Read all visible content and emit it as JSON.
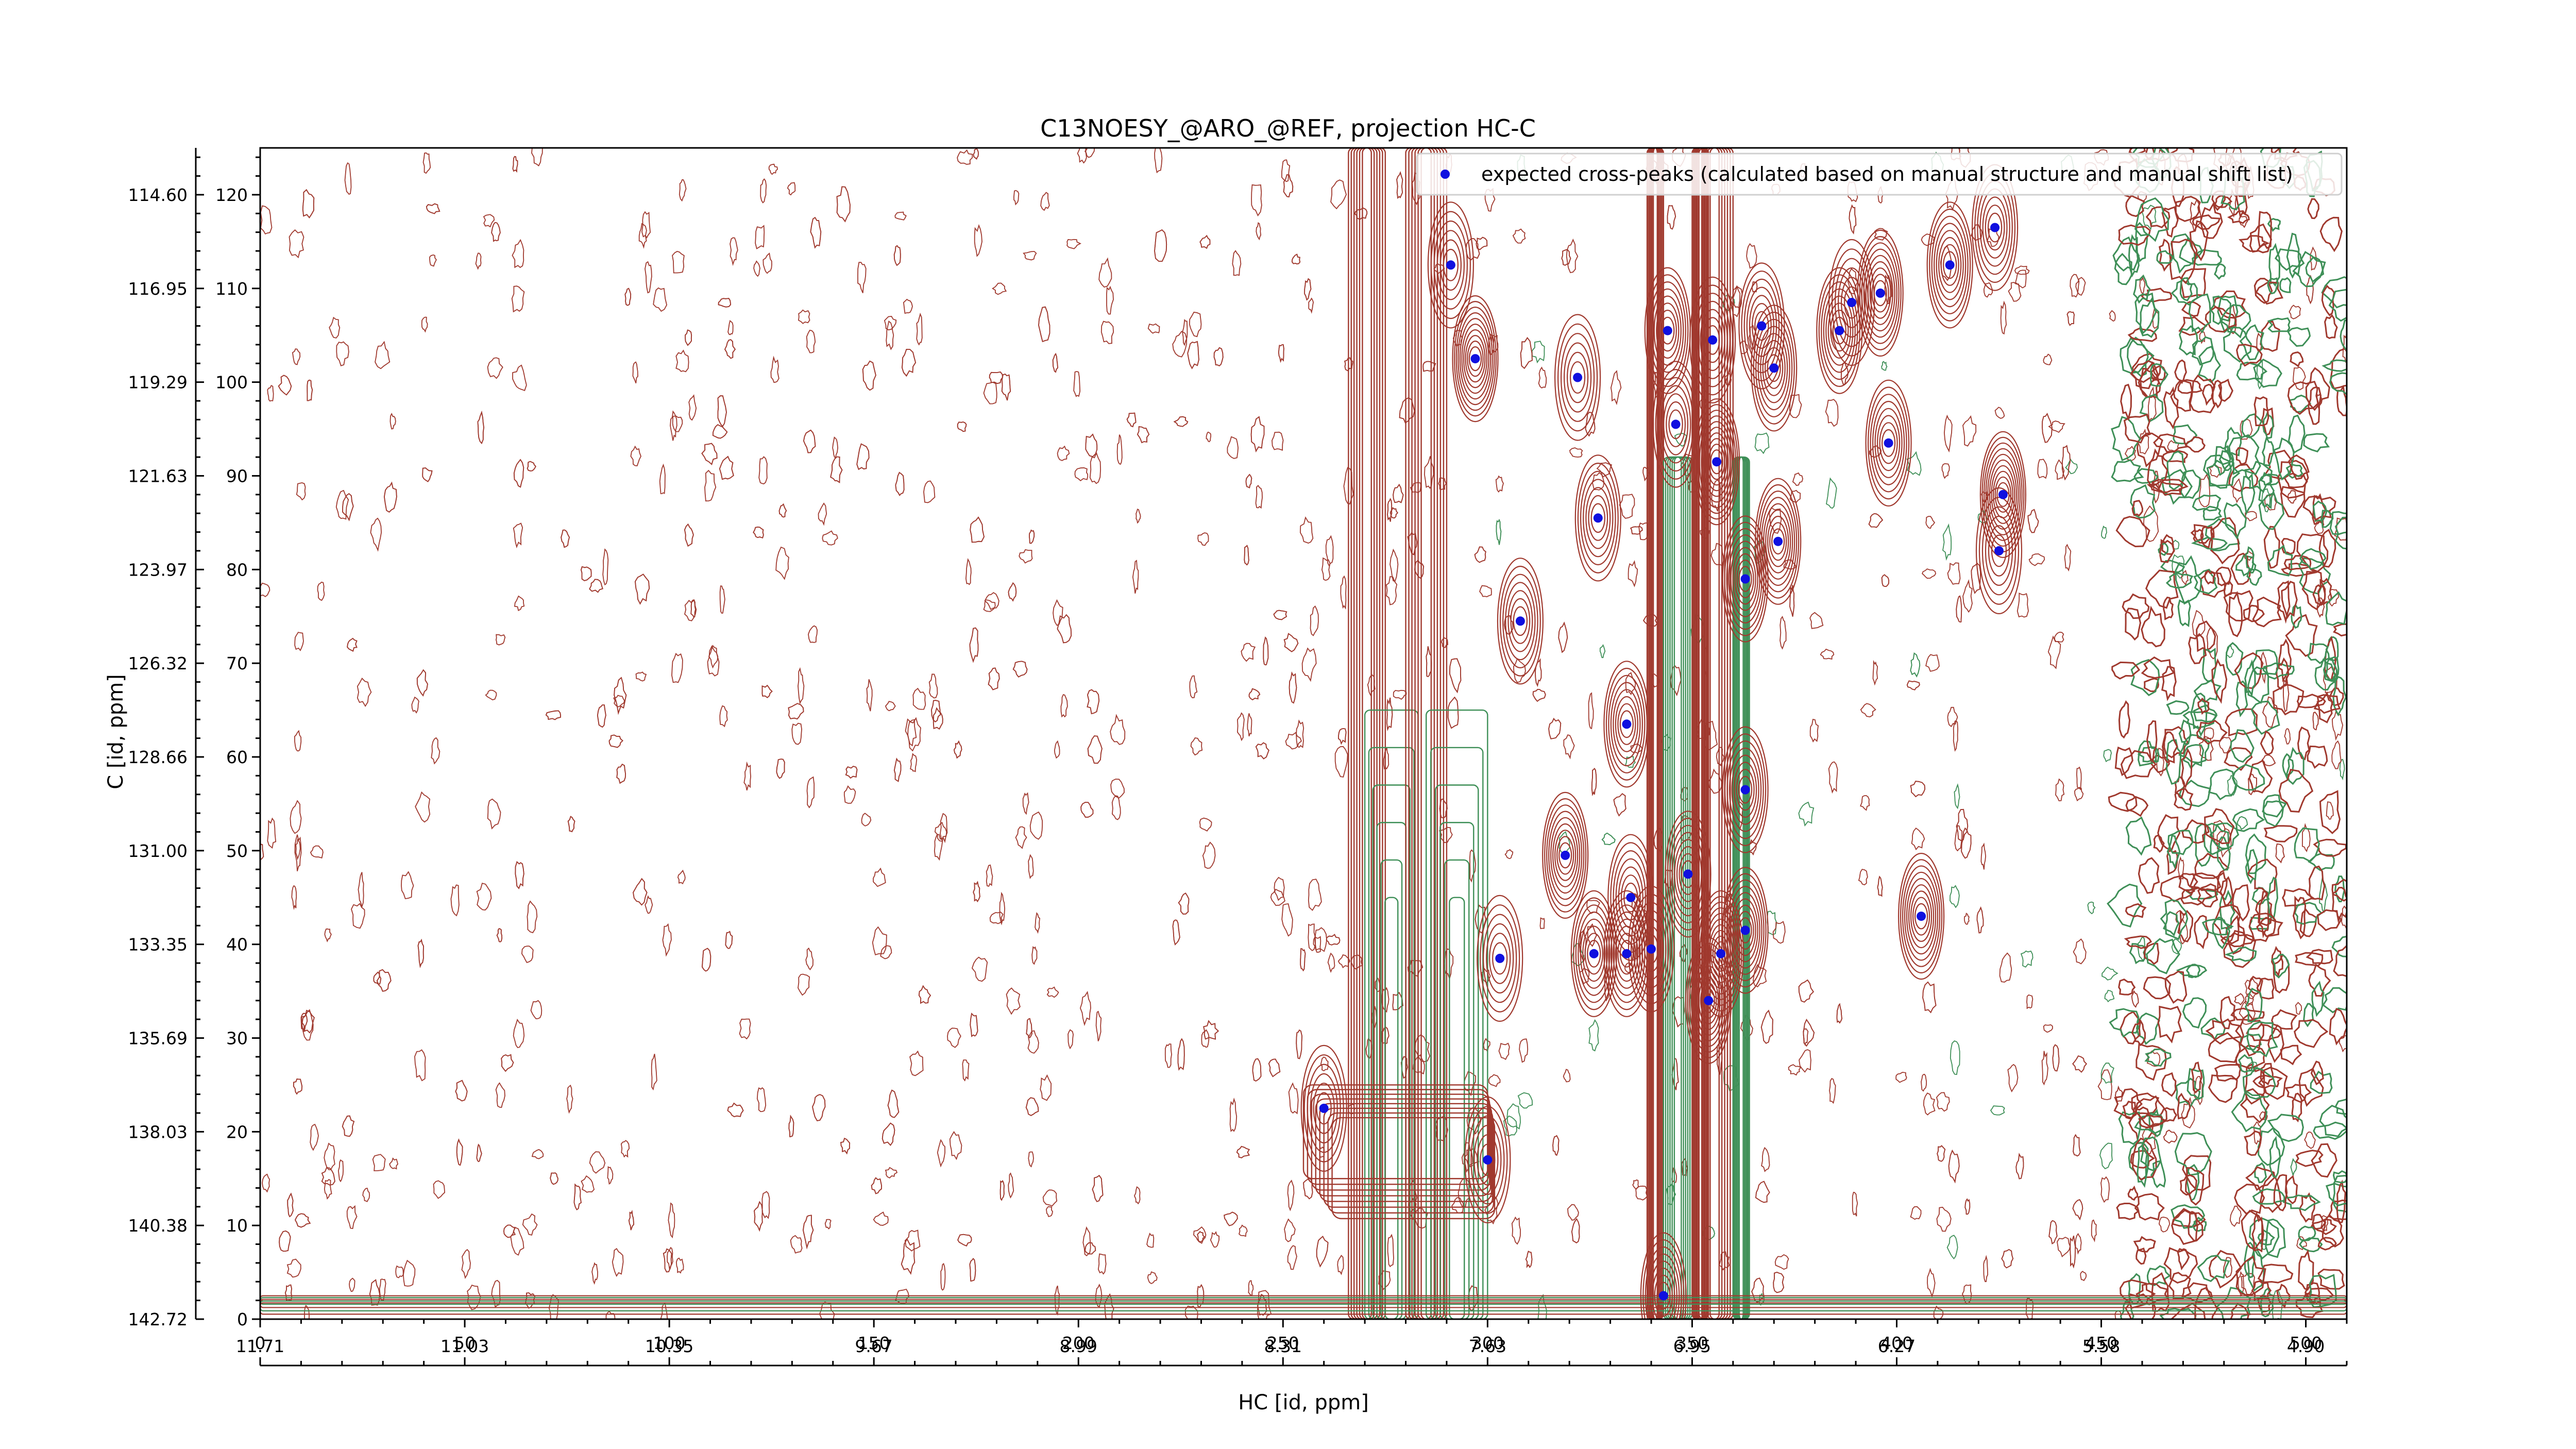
{
  "chart_data": {
    "type": "scatter",
    "title": "C13NOESY_@ARO_@REF, projection HC-C",
    "xlabel": "HC [id, ppm]",
    "ylabel": "C [id, ppm]",
    "xlim": [
      0,
      510
    ],
    "ylim": [
      0,
      125
    ],
    "x_index_ticks": [
      0,
      50,
      100,
      150,
      200,
      250,
      300,
      350,
      400,
      450,
      500
    ],
    "y_index_ticks": [
      0,
      10,
      20,
      30,
      40,
      50,
      60,
      70,
      80,
      90,
      100,
      110,
      120
    ],
    "x_ppm_ticks": [
      "11.71",
      "11.03",
      "10.35",
      "9.67",
      "8.99",
      "8.31",
      "7.63",
      "6.95",
      "6.27",
      "5.58",
      "4.90"
    ],
    "y_ppm_ticks": [
      "142.72",
      "140.38",
      "138.03",
      "135.69",
      "133.35",
      "131.00",
      "128.66",
      "126.32",
      "123.97",
      "121.63",
      "119.29",
      "116.95",
      "114.60"
    ],
    "legend": {
      "label": "expected cross-peaks (calculated based on manual structure and manual shift list)",
      "placement": "top-right"
    },
    "contour_colors": {
      "positive": "#a0392e",
      "negative": "#3e8f57"
    },
    "marker_color": "#1010e0",
    "series": [
      {
        "name": "expected cross-peaks (calculated based on manual structure and manual shift list)",
        "points": [
          {
            "x": 291,
            "y": 112.5
          },
          {
            "x": 297,
            "y": 102.5
          },
          {
            "x": 308,
            "y": 74.5
          },
          {
            "x": 322,
            "y": 100.5
          },
          {
            "x": 327,
            "y": 85.5
          },
          {
            "x": 334,
            "y": 63.5
          },
          {
            "x": 344,
            "y": 105.5
          },
          {
            "x": 346,
            "y": 95.5
          },
          {
            "x": 355,
            "y": 104.5
          },
          {
            "x": 356,
            "y": 91.5
          },
          {
            "x": 367,
            "y": 106.0
          },
          {
            "x": 370,
            "y": 101.5
          },
          {
            "x": 371,
            "y": 83.0
          },
          {
            "x": 363,
            "y": 79.0
          },
          {
            "x": 386,
            "y": 105.5
          },
          {
            "x": 389,
            "y": 108.5
          },
          {
            "x": 396,
            "y": 109.5
          },
          {
            "x": 398,
            "y": 93.5
          },
          {
            "x": 413,
            "y": 112.5
          },
          {
            "x": 424,
            "y": 116.5
          },
          {
            "x": 426,
            "y": 88.0
          },
          {
            "x": 425,
            "y": 82.0
          },
          {
            "x": 319,
            "y": 49.5
          },
          {
            "x": 335,
            "y": 45.0
          },
          {
            "x": 349,
            "y": 47.5
          },
          {
            "x": 363,
            "y": 56.5
          },
          {
            "x": 303,
            "y": 38.5
          },
          {
            "x": 326,
            "y": 39.0
          },
          {
            "x": 334,
            "y": 39.0
          },
          {
            "x": 340,
            "y": 39.5
          },
          {
            "x": 357,
            "y": 39.0
          },
          {
            "x": 363,
            "y": 41.5
          },
          {
            "x": 354,
            "y": 34.0
          },
          {
            "x": 406,
            "y": 43.0
          },
          {
            "x": 260,
            "y": 22.5
          },
          {
            "x": 300,
            "y": 17.0
          },
          {
            "x": 343,
            "y": 2.5
          }
        ]
      }
    ]
  }
}
